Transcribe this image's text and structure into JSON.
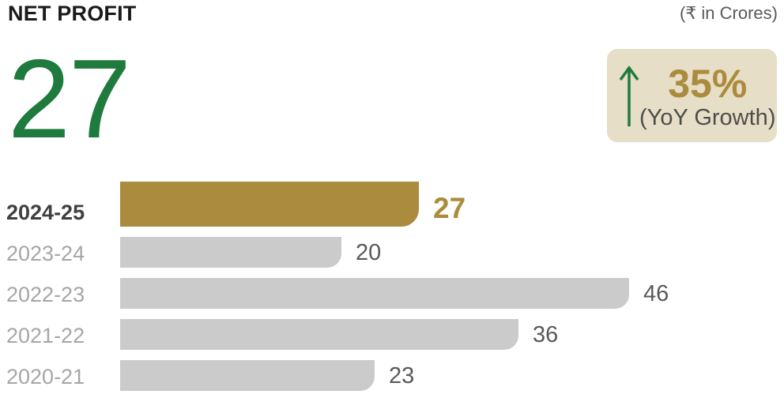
{
  "header": {
    "title": "NET PROFIT",
    "unit_note": "(₹ in Crores)"
  },
  "kpi": {
    "value": "27",
    "growth_badge": {
      "icon": "up-arrow-icon",
      "percent": "35%",
      "label": "(YoY Growth)"
    }
  },
  "colors": {
    "accent_gold": "#AB8B3D",
    "accent_green": "#1F7A3D",
    "badge_bg": "#E6DEC6",
    "bar_gray": "#CBCBCB",
    "year_label_gray": "#A6A6A6",
    "year_label_dark": "#3F3F3F",
    "value_gray": "#595959"
  },
  "chart_data": {
    "type": "bar",
    "orientation": "horizontal",
    "title": "NET PROFIT",
    "unit": "₹ in Crores",
    "categories": [
      "2024-25",
      "2023-24",
      "2022-23",
      "2021-22",
      "2020-21"
    ],
    "values": [
      27,
      20,
      46,
      36,
      23
    ],
    "highlight_index": 0,
    "highlight_color": "#AB8B3D",
    "bar_color": "#CBCBCB",
    "xlim": [
      0,
      50
    ],
    "grid": false,
    "legend": false,
    "value_labels": "end-of-bar"
  }
}
